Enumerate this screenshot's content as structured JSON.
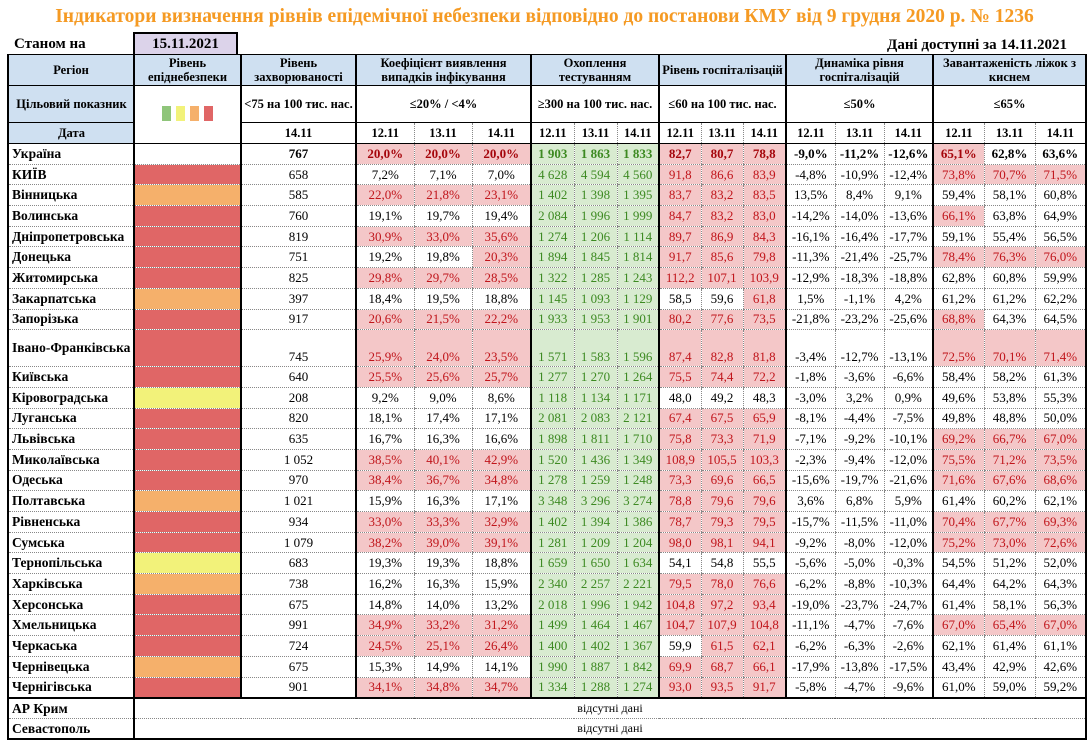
{
  "title": "Індикатори визначення рівнів епідемічної небезпеки відповідно до постанови КМУ від 9 грудня 2020 р. № 1236",
  "as_of_label": "Станом на",
  "as_of_date": "15.11.2021",
  "available_label": "Дані доступні за  14.11.2021",
  "headers": {
    "region": "Регіон",
    "level": "Рівень епіднебезпеки",
    "incidence": "Рівень захворюваності",
    "coef": "Коефіцієнт виявлення випадків інфікування",
    "testing": "Охоплення тестуванням",
    "hosp": "Рівень госпіталізацій",
    "dyn": "Динаміка рівня госпіталізацій",
    "beds": "Завантаженість ліжок з киснем"
  },
  "targets": {
    "label": "Цільовий показник",
    "incidence": "<75 на 100 тис. нас.",
    "coef": "≤20% / <4%",
    "testing": "≥300 на 100 тис. нас.",
    "hosp": "≤60 на 100 тис. нас.",
    "dyn": "≤50%",
    "beds": "≤65%"
  },
  "date_label": "Дата",
  "incidence_date": "14.11",
  "dates": [
    "12.11",
    "13.11",
    "14.11"
  ],
  "level_colors": {
    "green": "#8fc57a",
    "yellow": "#f2f27a",
    "orange": "#f5b06b",
    "red": "#e06666"
  },
  "legend": [
    "green",
    "yellow",
    "orange",
    "red"
  ],
  "ukraine": {
    "name": "Україна",
    "incidence": "767",
    "coef": [
      "20,0%",
      "20,0%",
      "20,0%"
    ],
    "testing": [
      "1 903",
      "1 863",
      "1 833"
    ],
    "hosp": [
      "82,7",
      "80,7",
      "78,8"
    ],
    "dyn": [
      "-9,0%",
      "-11,2%",
      "-12,6%"
    ],
    "beds": [
      "65,1%",
      "62,8%",
      "63,6%"
    ]
  },
  "regions": [
    {
      "name": "КИЇВ",
      "level": "red",
      "incidence": "658",
      "coef": [
        "7,2%",
        "7,1%",
        "7,0%"
      ],
      "testing": [
        "4 628",
        "4 594",
        "4 560"
      ],
      "hosp": [
        "91,8",
        "86,6",
        "83,9"
      ],
      "dyn": [
        "-4,8%",
        "-10,9%",
        "-12,4%"
      ],
      "beds": [
        "73,8%",
        "70,7%",
        "71,5%"
      ]
    },
    {
      "name": "Вінницька",
      "level": "orange",
      "incidence": "585",
      "coef": [
        "22,0%",
        "21,8%",
        "23,1%"
      ],
      "testing": [
        "1 402",
        "1 398",
        "1 395"
      ],
      "hosp": [
        "83,7",
        "83,2",
        "83,5"
      ],
      "dyn": [
        "13,5%",
        "8,4%",
        "9,1%"
      ],
      "beds": [
        "59,4%",
        "58,1%",
        "60,8%"
      ]
    },
    {
      "name": "Волинська",
      "level": "red",
      "incidence": "760",
      "coef": [
        "19,1%",
        "19,7%",
        "19,4%"
      ],
      "testing": [
        "2 084",
        "1 996",
        "1 999"
      ],
      "hosp": [
        "84,7",
        "83,2",
        "83,0"
      ],
      "dyn": [
        "-14,2%",
        "-14,0%",
        "-13,6%"
      ],
      "beds": [
        "66,1%",
        "63,8%",
        "64,9%"
      ]
    },
    {
      "name": "Дніпропетровська",
      "level": "red",
      "incidence": "819",
      "coef": [
        "30,9%",
        "33,0%",
        "35,6%"
      ],
      "testing": [
        "1 274",
        "1 206",
        "1 114"
      ],
      "hosp": [
        "89,7",
        "86,9",
        "84,3"
      ],
      "dyn": [
        "-16,1%",
        "-16,4%",
        "-17,7%"
      ],
      "beds": [
        "59,1%",
        "55,4%",
        "56,5%"
      ]
    },
    {
      "name": "Донецька",
      "level": "red",
      "incidence": "751",
      "coef": [
        "19,2%",
        "19,8%",
        "20,3%"
      ],
      "testing": [
        "1 894",
        "1 845",
        "1 814"
      ],
      "hosp": [
        "91,7",
        "85,6",
        "79,8"
      ],
      "dyn": [
        "-11,3%",
        "-21,4%",
        "-25,7%"
      ],
      "beds": [
        "78,4%",
        "76,3%",
        "76,0%"
      ]
    },
    {
      "name": "Житомирська",
      "level": "red",
      "incidence": "825",
      "coef": [
        "29,8%",
        "29,7%",
        "28,5%"
      ],
      "testing": [
        "1 322",
        "1 285",
        "1 243"
      ],
      "hosp": [
        "112,2",
        "107,1",
        "103,9"
      ],
      "dyn": [
        "-12,9%",
        "-18,3%",
        "-18,8%"
      ],
      "beds": [
        "62,8%",
        "60,8%",
        "59,9%"
      ]
    },
    {
      "name": "Закарпатська",
      "level": "orange",
      "incidence": "397",
      "coef": [
        "18,4%",
        "19,5%",
        "18,8%"
      ],
      "testing": [
        "1 145",
        "1 093",
        "1 129"
      ],
      "hosp": [
        "58,5",
        "59,6",
        "61,8"
      ],
      "dyn": [
        "1,5%",
        "-1,1%",
        "4,2%"
      ],
      "beds": [
        "61,2%",
        "61,2%",
        "62,2%"
      ]
    },
    {
      "name": "Запорізька",
      "level": "red",
      "incidence": "917",
      "coef": [
        "20,6%",
        "21,5%",
        "22,2%"
      ],
      "testing": [
        "1 933",
        "1 953",
        "1 901"
      ],
      "hosp": [
        "80,2",
        "77,6",
        "73,5"
      ],
      "dyn": [
        "-21,8%",
        "-23,2%",
        "-25,6%"
      ],
      "beds": [
        "68,8%",
        "64,3%",
        "64,5%"
      ]
    },
    {
      "name": "Івано-Франківська",
      "level": "red",
      "incidence": "745",
      "coef": [
        "25,9%",
        "24,0%",
        "23,5%"
      ],
      "testing": [
        "1 571",
        "1 583",
        "1 596"
      ],
      "hosp": [
        "87,4",
        "82,8",
        "81,8"
      ],
      "dyn": [
        "-3,4%",
        "-12,7%",
        "-13,1%"
      ],
      "beds": [
        "72,5%",
        "70,1%",
        "71,4%"
      ],
      "tall": true
    },
    {
      "name": "Київська",
      "level": "red",
      "incidence": "640",
      "coef": [
        "25,5%",
        "25,6%",
        "25,7%"
      ],
      "testing": [
        "1 277",
        "1 270",
        "1 264"
      ],
      "hosp": [
        "75,5",
        "74,4",
        "72,2"
      ],
      "dyn": [
        "-1,8%",
        "-3,6%",
        "-6,6%"
      ],
      "beds": [
        "58,4%",
        "58,2%",
        "61,3%"
      ]
    },
    {
      "name": "Кіровоградська",
      "level": "yellow",
      "incidence": "208",
      "coef": [
        "9,2%",
        "9,0%",
        "8,6%"
      ],
      "testing": [
        "1 118",
        "1 134",
        "1 171"
      ],
      "hosp": [
        "48,0",
        "49,2",
        "48,3"
      ],
      "dyn": [
        "-3,0%",
        "3,2%",
        "0,9%"
      ],
      "beds": [
        "49,6%",
        "53,8%",
        "55,3%"
      ]
    },
    {
      "name": "Луганська",
      "level": "red",
      "incidence": "820",
      "coef": [
        "18,1%",
        "17,4%",
        "17,1%"
      ],
      "testing": [
        "2 081",
        "2 083",
        "2 121"
      ],
      "hosp": [
        "67,4",
        "67,5",
        "65,9"
      ],
      "dyn": [
        "-8,1%",
        "-4,4%",
        "-7,5%"
      ],
      "beds": [
        "49,8%",
        "48,8%",
        "50,0%"
      ]
    },
    {
      "name": "Львівська",
      "level": "red",
      "incidence": "635",
      "coef": [
        "16,7%",
        "16,3%",
        "16,6%"
      ],
      "testing": [
        "1 898",
        "1 811",
        "1 710"
      ],
      "hosp": [
        "75,8",
        "73,3",
        "71,9"
      ],
      "dyn": [
        "-7,1%",
        "-9,2%",
        "-10,1%"
      ],
      "beds": [
        "69,2%",
        "66,7%",
        "67,0%"
      ]
    },
    {
      "name": "Миколаївська",
      "level": "red",
      "incidence": "1 052",
      "coef": [
        "38,5%",
        "40,1%",
        "42,9%"
      ],
      "testing": [
        "1 520",
        "1 436",
        "1 349"
      ],
      "hosp": [
        "108,9",
        "105,5",
        "103,3"
      ],
      "dyn": [
        "-2,3%",
        "-9,4%",
        "-12,0%"
      ],
      "beds": [
        "75,5%",
        "71,2%",
        "73,5%"
      ]
    },
    {
      "name": "Одеська",
      "level": "red",
      "incidence": "970",
      "coef": [
        "38,4%",
        "36,7%",
        "34,8%"
      ],
      "testing": [
        "1 278",
        "1 259",
        "1 248"
      ],
      "hosp": [
        "73,3",
        "69,6",
        "66,5"
      ],
      "dyn": [
        "-15,6%",
        "-19,7%",
        "-21,6%"
      ],
      "beds": [
        "71,6%",
        "67,6%",
        "68,6%"
      ]
    },
    {
      "name": "Полтавська",
      "level": "orange",
      "incidence": "1 021",
      "coef": [
        "15,9%",
        "16,3%",
        "17,1%"
      ],
      "testing": [
        "3 348",
        "3 296",
        "3 274"
      ],
      "hosp": [
        "78,8",
        "79,6",
        "79,6"
      ],
      "dyn": [
        "3,6%",
        "6,8%",
        "5,9%"
      ],
      "beds": [
        "61,4%",
        "60,2%",
        "62,1%"
      ]
    },
    {
      "name": "Рівненська",
      "level": "red",
      "incidence": "934",
      "coef": [
        "33,0%",
        "33,3%",
        "32,9%"
      ],
      "testing": [
        "1 402",
        "1 394",
        "1 386"
      ],
      "hosp": [
        "78,7",
        "79,3",
        "79,5"
      ],
      "dyn": [
        "-15,7%",
        "-11,5%",
        "-11,0%"
      ],
      "beds": [
        "70,4%",
        "67,7%",
        "69,3%"
      ]
    },
    {
      "name": "Сумська",
      "level": "red",
      "incidence": "1 079",
      "coef": [
        "38,2%",
        "39,0%",
        "39,1%"
      ],
      "testing": [
        "1 281",
        "1 209",
        "1 204"
      ],
      "hosp": [
        "98,0",
        "98,1",
        "94,1"
      ],
      "dyn": [
        "-9,2%",
        "-8,0%",
        "-12,0%"
      ],
      "beds": [
        "75,2%",
        "73,0%",
        "72,6%"
      ]
    },
    {
      "name": "Тернопільська",
      "level": "yellow",
      "incidence": "683",
      "coef": [
        "19,3%",
        "19,3%",
        "18,8%"
      ],
      "testing": [
        "1 659",
        "1 650",
        "1 634"
      ],
      "hosp": [
        "54,1",
        "54,8",
        "55,5"
      ],
      "dyn": [
        "-5,6%",
        "-5,0%",
        "-0,3%"
      ],
      "beds": [
        "54,5%",
        "51,2%",
        "52,0%"
      ]
    },
    {
      "name": "Харківська",
      "level": "orange",
      "incidence": "738",
      "coef": [
        "16,2%",
        "16,3%",
        "15,9%"
      ],
      "testing": [
        "2 340",
        "2 257",
        "2 221"
      ],
      "hosp": [
        "79,5",
        "78,0",
        "76,6"
      ],
      "dyn": [
        "-6,2%",
        "-8,8%",
        "-10,3%"
      ],
      "beds": [
        "64,4%",
        "64,2%",
        "64,3%"
      ]
    },
    {
      "name": "Херсонська",
      "level": "red",
      "incidence": "675",
      "coef": [
        "14,8%",
        "14,0%",
        "13,2%"
      ],
      "testing": [
        "2 018",
        "1 996",
        "1 942"
      ],
      "hosp": [
        "104,8",
        "97,2",
        "93,4"
      ],
      "dyn": [
        "-19,0%",
        "-23,7%",
        "-24,7%"
      ],
      "beds": [
        "61,4%",
        "58,1%",
        "56,3%"
      ]
    },
    {
      "name": "Хмельницька",
      "level": "red",
      "incidence": "991",
      "coef": [
        "34,9%",
        "33,2%",
        "31,2%"
      ],
      "testing": [
        "1 499",
        "1 464",
        "1 467"
      ],
      "hosp": [
        "104,7",
        "107,9",
        "104,8"
      ],
      "dyn": [
        "-11,1%",
        "-4,7%",
        "-7,6%"
      ],
      "beds": [
        "67,0%",
        "65,4%",
        "67,0%"
      ]
    },
    {
      "name": "Черкаська",
      "level": "red",
      "incidence": "724",
      "coef": [
        "24,5%",
        "25,1%",
        "26,4%"
      ],
      "testing": [
        "1 400",
        "1 402",
        "1 367"
      ],
      "hosp": [
        "59,9",
        "61,5",
        "62,1"
      ],
      "dyn": [
        "-6,2%",
        "-6,3%",
        "-2,6%"
      ],
      "beds": [
        "62,1%",
        "61,4%",
        "61,1%"
      ]
    },
    {
      "name": "Чернівецька",
      "level": "orange",
      "incidence": "675",
      "coef": [
        "15,3%",
        "14,9%",
        "14,1%"
      ],
      "testing": [
        "1 990",
        "1 887",
        "1 842"
      ],
      "hosp": [
        "69,9",
        "68,7",
        "66,1"
      ],
      "dyn": [
        "-17,9%",
        "-13,8%",
        "-17,5%"
      ],
      "beds": [
        "43,4%",
        "42,9%",
        "42,6%"
      ]
    },
    {
      "name": "Чернігівська",
      "level": "red",
      "incidence": "901",
      "coef": [
        "34,1%",
        "34,8%",
        "34,7%"
      ],
      "testing": [
        "1 334",
        "1 288",
        "1 274"
      ],
      "hosp": [
        "93,0",
        "93,5",
        "91,7"
      ],
      "dyn": [
        "-5,8%",
        "-4,7%",
        "-9,6%"
      ],
      "beds": [
        "61,0%",
        "59,0%",
        "59,2%"
      ]
    }
  ],
  "missing": [
    {
      "name": "АР Крим",
      "note": "відсутні дані"
    },
    {
      "name": "Севастополь",
      "note": "відсутні дані"
    }
  ]
}
